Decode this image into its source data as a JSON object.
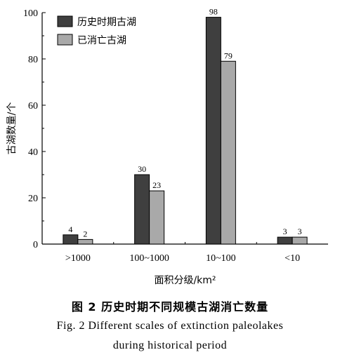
{
  "chart_data": {
    "type": "bar",
    "categories": [
      ">1000",
      "100~1000",
      "10~100",
      "<10"
    ],
    "series": [
      {
        "name": "历史时期古湖",
        "values": [
          4,
          30,
          98,
          3
        ],
        "color": "#3f3f3f"
      },
      {
        "name": "已消亡古湖",
        "values": [
          2,
          23,
          79,
          3
        ],
        "color": "#a9a9a9"
      }
    ],
    "xlabel": "面积分级/km²",
    "ylabel": "古湖数量/个",
    "ylim": [
      0,
      100
    ],
    "yticks": [
      0,
      20,
      40,
      60,
      80,
      100
    ],
    "grid": false,
    "legend_position": "top-left"
  },
  "captions": {
    "zh": "图 2   历史时期不同规模古湖消亡数量",
    "en_line1": "Fig. 2    Different scales of extinction paleolakes",
    "en_line2": "during historical period"
  }
}
